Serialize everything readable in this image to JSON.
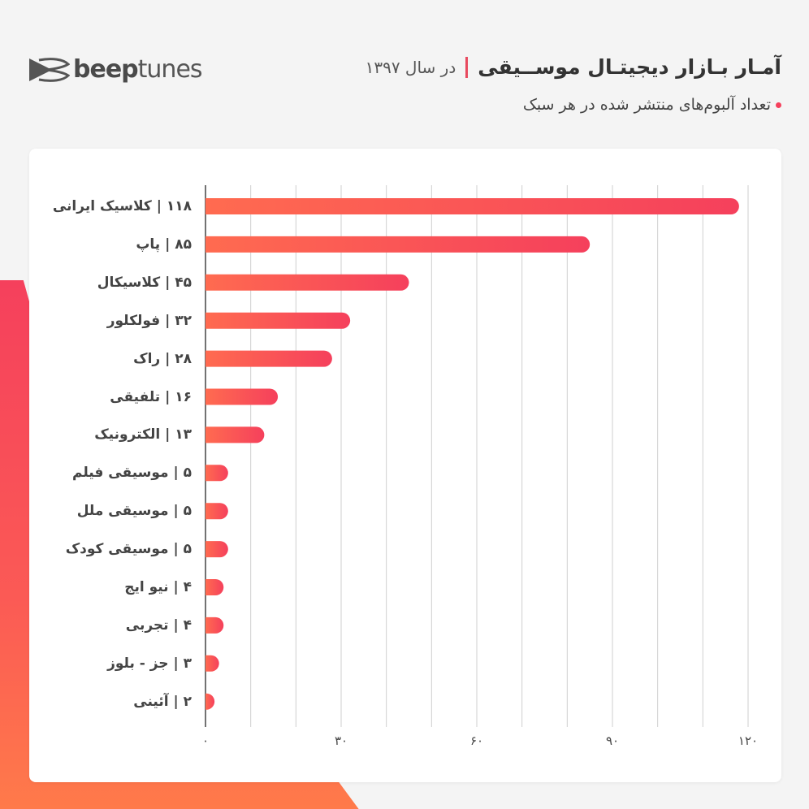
{
  "header": {
    "logo_bold": "beep",
    "logo_light": "tunes",
    "title": "آمـار بـازار دیجیتـال موســیقی",
    "year_text": "در سال ۱۳۹۷",
    "subtitle": "تعداد آلبوم‌های منتشر شده در هر سبک"
  },
  "colors": {
    "bar_start": "#ff6b50",
    "bar_end": "#f5405c",
    "accent": "#e84a5f"
  },
  "chart_data": {
    "type": "bar",
    "orientation": "horizontal",
    "title": "تعداد آلبوم‌های منتشر شده در هر سبک",
    "categories": [
      "کلاسیک ایرانی",
      "پاپ",
      "کلاسیکال",
      "فولکلور",
      "راک",
      "تلفیقی",
      "الکترونیک",
      "موسیقی فیلم",
      "موسیقی ملل",
      "موسیقی کودک",
      "نیو ایج",
      "تجربی",
      "جز - بلوز",
      "آئینی"
    ],
    "values": [
      118,
      85,
      45,
      32,
      28,
      16,
      13,
      5,
      5,
      5,
      4,
      4,
      3,
      2
    ],
    "value_labels": [
      "۱۱۸",
      "۸۵",
      "۴۵",
      "۳۲",
      "۲۸",
      "۱۶",
      "۱۳",
      "۵",
      "۵",
      "۵",
      "۴",
      "۴",
      "۳",
      "۲"
    ],
    "xlim": [
      0,
      120
    ],
    "xticks": [
      0,
      30,
      60,
      90,
      120
    ],
    "xtick_labels": [
      "۰",
      "۳۰",
      "۶۰",
      "۹۰",
      "۱۲۰"
    ],
    "grid_step": 10,
    "grid": true
  }
}
